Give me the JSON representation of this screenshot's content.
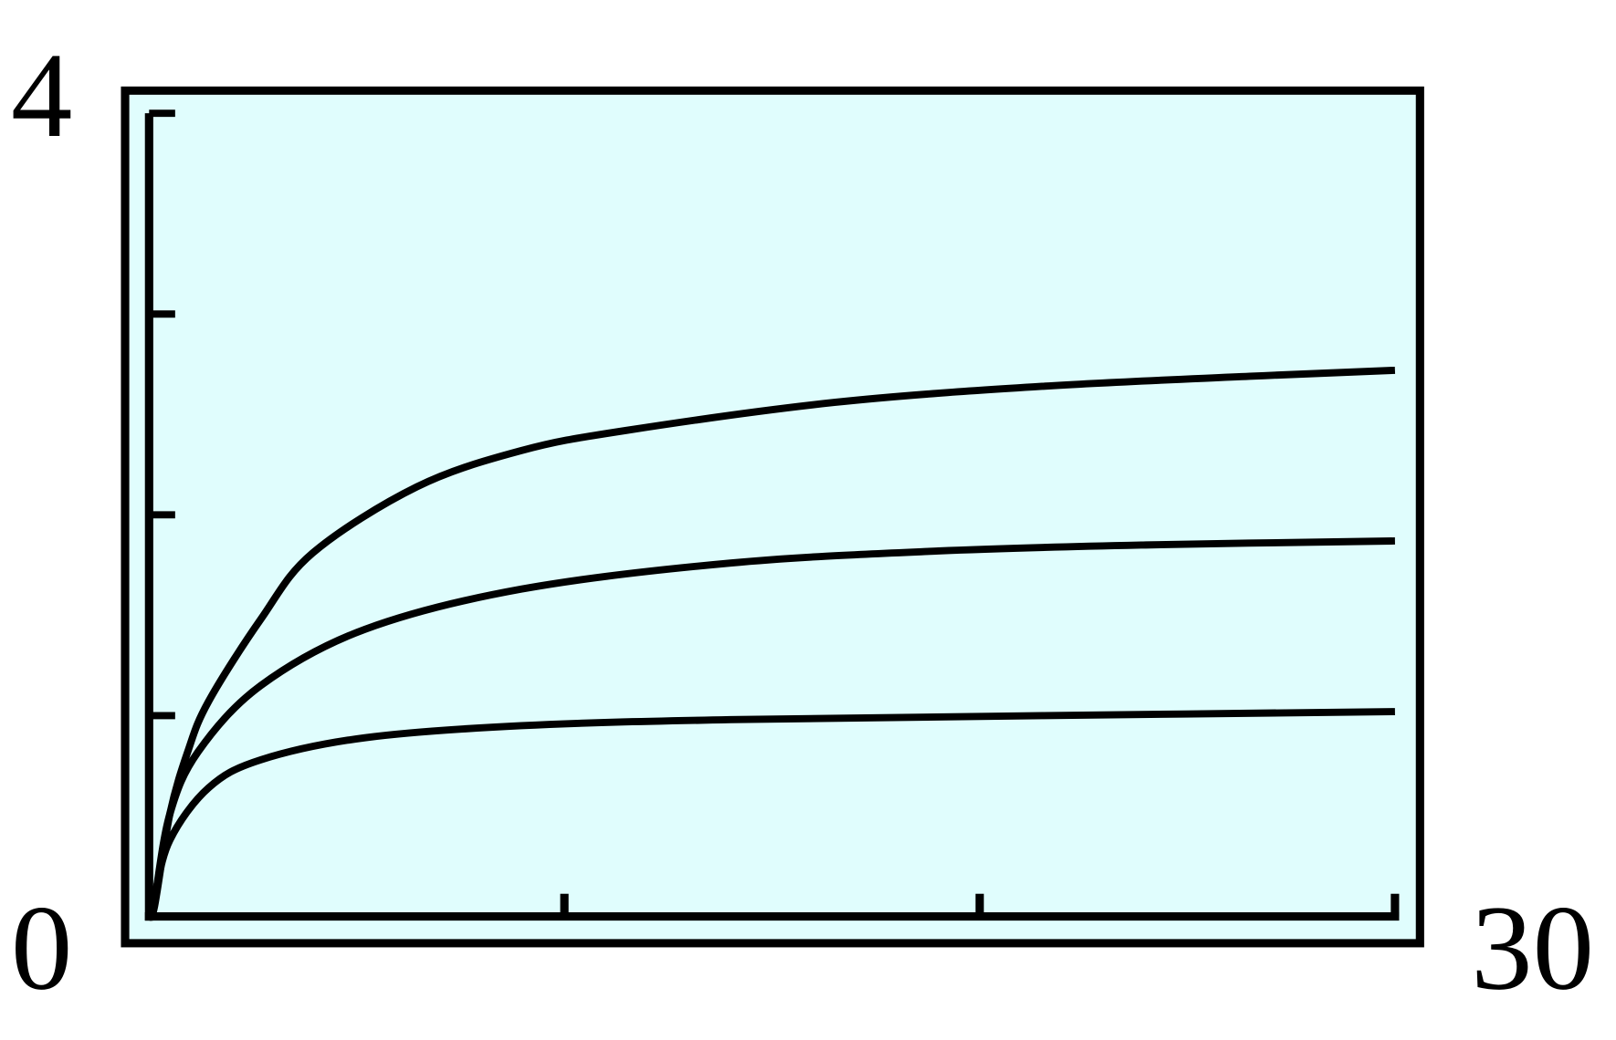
{
  "chart_data": {
    "type": "line",
    "title": "",
    "xlabel": "",
    "ylabel": "",
    "xlim": [
      0,
      30
    ],
    "ylim": [
      0,
      4
    ],
    "x_tick_labels": {
      "min": "0",
      "max": "30"
    },
    "y_tick_labels": {
      "min": "0",
      "max": "4"
    },
    "x_ticks": [
      0,
      10,
      20,
      30
    ],
    "y_ticks": [
      0,
      1,
      2,
      3,
      4
    ],
    "grid": false,
    "background_color": "#e0fdfd",
    "line_color": "#000000",
    "series": [
      {
        "x": [
          0,
          0.13,
          0.5,
          0.93,
          1.43,
          2.69,
          3.94,
          6.45,
          8.96,
          11.47,
          16.5,
          21.5,
          26.5,
          30
        ],
        "y": [
          0,
          0.05,
          0.51,
          0.82,
          1.07,
          1.48,
          1.81,
          2.14,
          2.32,
          2.42,
          2.56,
          2.64,
          2.69,
          2.72
        ]
      },
      {
        "x": [
          0,
          0.13,
          0.5,
          1.18,
          2.69,
          5.2,
          8.96,
          14,
          19,
          24,
          30
        ],
        "y": [
          0,
          0.08,
          0.51,
          0.82,
          1.15,
          1.43,
          1.63,
          1.76,
          1.82,
          1.85,
          1.87
        ]
      },
      {
        "x": [
          0,
          0.13,
          0.5,
          1.43,
          2.69,
          5.2,
          8.96,
          14,
          21.5,
          30
        ],
        "y": [
          0,
          0.1,
          0.38,
          0.64,
          0.78,
          0.89,
          0.95,
          0.98,
          1.0,
          1.02
        ]
      }
    ]
  }
}
